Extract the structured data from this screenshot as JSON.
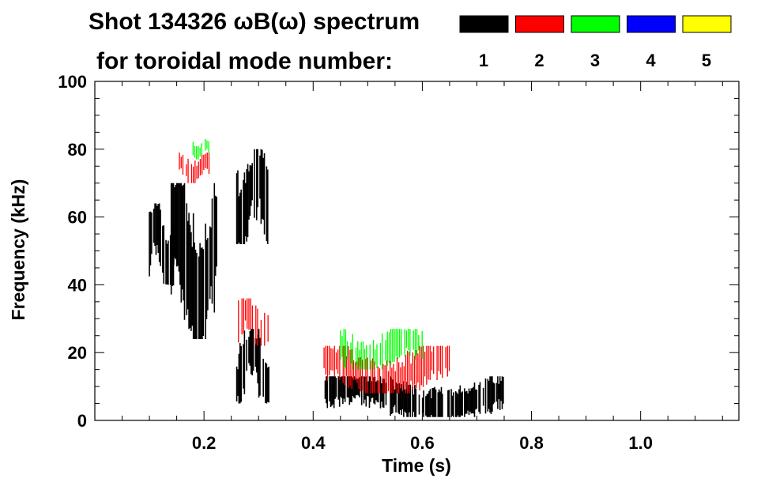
{
  "chart_data": {
    "type": "heatmap",
    "title_line1": "Shot 134326 ωB(ω) spectrum",
    "title_line2": "for toroidal mode number:",
    "xlabel": "Time (s)",
    "ylabel": "Frequency (kHz)",
    "xlim": [
      0.0,
      1.18
    ],
    "ylim": [
      0,
      100
    ],
    "x_ticks": [
      {
        "value": 0.2,
        "label": "0.2"
      },
      {
        "value": 0.4,
        "label": "0.4"
      },
      {
        "value": 0.6,
        "label": "0.6"
      },
      {
        "value": 0.8,
        "label": "0.8"
      },
      {
        "value": 1.0,
        "label": "1.0"
      }
    ],
    "y_ticks": [
      {
        "value": 0,
        "label": "0"
      },
      {
        "value": 20,
        "label": "20"
      },
      {
        "value": 40,
        "label": "40"
      },
      {
        "value": 60,
        "label": "60"
      },
      {
        "value": 80,
        "label": "80"
      },
      {
        "value": 100,
        "label": "100"
      }
    ],
    "legend": {
      "placement": "top-right",
      "entries": [
        {
          "label": "1",
          "color": "#000000"
        },
        {
          "label": "2",
          "color": "#ff0000"
        },
        {
          "label": "3",
          "color": "#00ff00"
        },
        {
          "label": "4",
          "color": "#0000ff"
        },
        {
          "label": "5",
          "color": "#ffff00"
        }
      ]
    },
    "mode_colors": {
      "1": "#000000",
      "2": "#ff0000",
      "3": "#00ff00",
      "4": "#0000ff",
      "5": "#ffff00"
    },
    "blobs": [
      {
        "mode": 1,
        "t0": 0.1,
        "t1": 0.145,
        "f0": 40,
        "f1": 64
      },
      {
        "mode": 1,
        "t0": 0.14,
        "t1": 0.225,
        "f0": 24,
        "f1": 70
      },
      {
        "mode": 2,
        "t0": 0.155,
        "t1": 0.21,
        "f0": 70,
        "f1": 79
      },
      {
        "mode": 3,
        "t0": 0.18,
        "t1": 0.21,
        "f0": 77,
        "f1": 83
      },
      {
        "mode": 1,
        "t0": 0.26,
        "t1": 0.32,
        "f0": 52,
        "f1": 80
      },
      {
        "mode": 1,
        "t0": 0.26,
        "t1": 0.32,
        "f0": 5,
        "f1": 27
      },
      {
        "mode": 2,
        "t0": 0.26,
        "t1": 0.32,
        "f0": 22,
        "f1": 36
      },
      {
        "mode": 1,
        "t0": 0.42,
        "t1": 0.75,
        "f0": 1,
        "f1": 13
      },
      {
        "mode": 2,
        "t0": 0.42,
        "t1": 0.65,
        "f0": 8,
        "f1": 22
      },
      {
        "mode": 3,
        "t0": 0.45,
        "t1": 0.6,
        "f0": 15,
        "f1": 27
      }
    ]
  }
}
